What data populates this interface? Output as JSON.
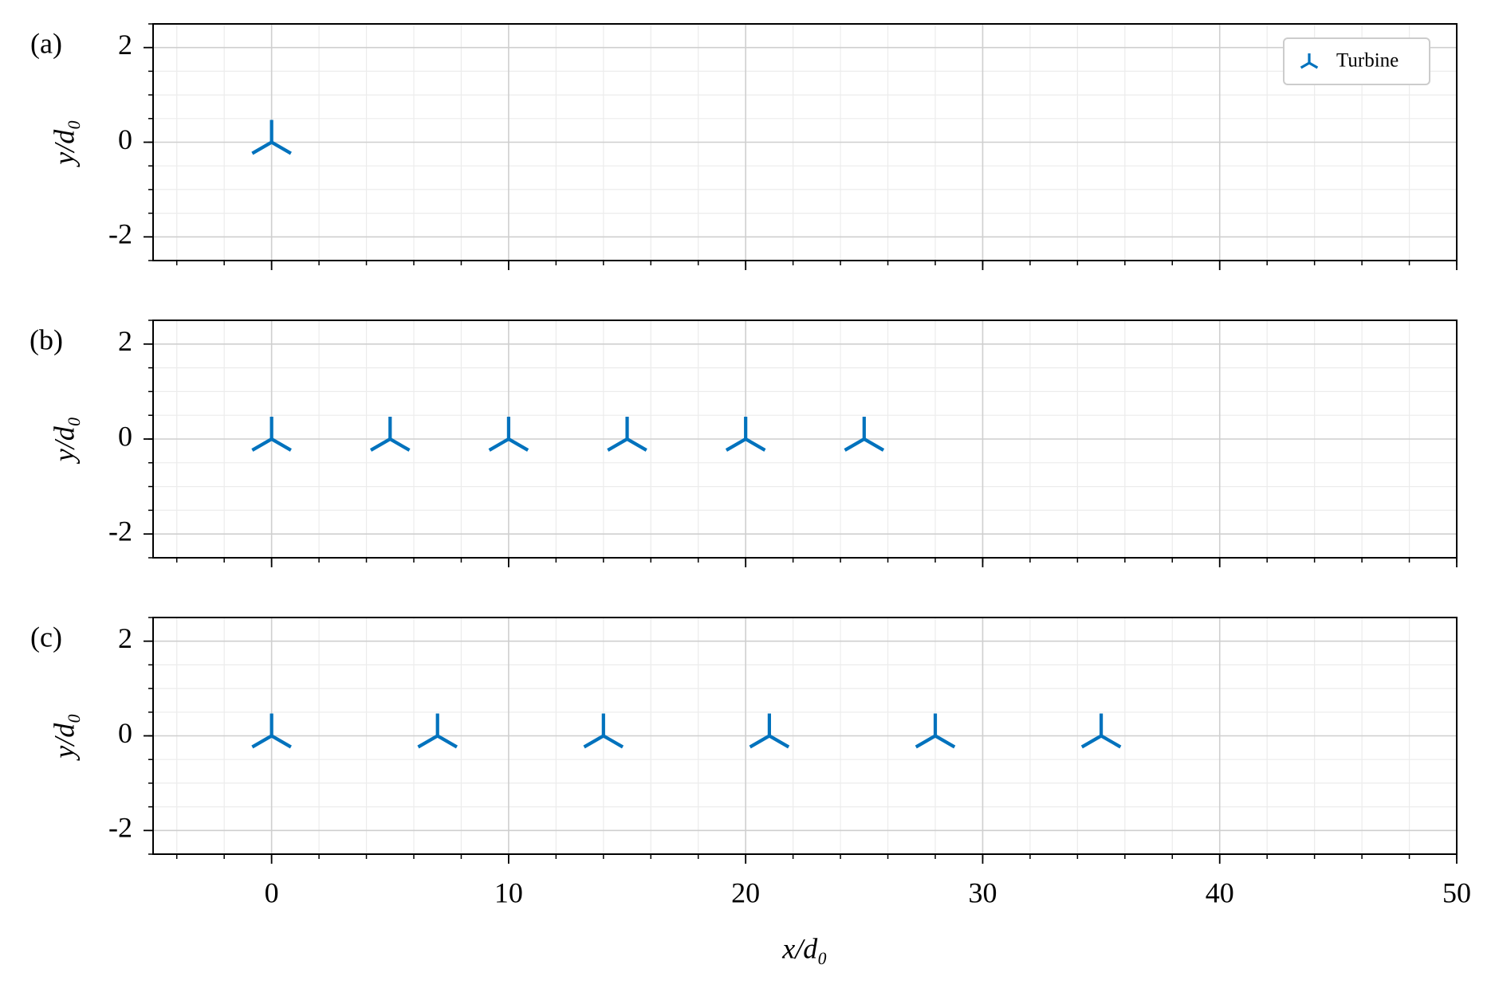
{
  "chart_data": [
    {
      "type": "scatter",
      "panel": "(a)",
      "ylabel": "y/d₀",
      "series": [
        {
          "name": "Turbine",
          "color": "#0072bd",
          "x": [
            0
          ],
          "values": [
            0
          ]
        }
      ],
      "legend": "upper right",
      "xlim": [
        -5,
        50
      ],
      "ylim": [
        -2.5,
        2.5
      ],
      "xticks": [
        0,
        10,
        20,
        30,
        40,
        50
      ],
      "yticks": [
        -2,
        0,
        2
      ],
      "xminor": 2,
      "yminor": 0.5,
      "grid": true
    },
    {
      "type": "scatter",
      "panel": "(b)",
      "ylabel": "y/d₀",
      "series": [
        {
          "color": "#0072bd",
          "x": [
            0,
            5,
            10,
            15,
            20,
            25
          ],
          "values": [
            0,
            0,
            0,
            0,
            0,
            0
          ]
        }
      ],
      "xlim": [
        -5,
        50
      ],
      "ylim": [
        -2.5,
        2.5
      ],
      "xticks": [
        0,
        10,
        20,
        30,
        40,
        50
      ],
      "yticks": [
        -2,
        0,
        2
      ],
      "xminor": 2,
      "yminor": 0.5,
      "grid": true
    },
    {
      "type": "scatter",
      "panel": "(c)",
      "ylabel": "y/d₀",
      "xlabel": "x/d₀",
      "series": [
        {
          "color": "#0072bd",
          "x": [
            0,
            7,
            14,
            21,
            28,
            35
          ],
          "values": [
            0,
            0,
            0,
            0,
            0,
            0
          ]
        }
      ],
      "xlim": [
        -5,
        50
      ],
      "ylim": [
        -2.5,
        2.5
      ],
      "xticks": [
        0,
        10,
        20,
        30,
        40,
        50
      ],
      "yticks": [
        -2,
        0,
        2
      ],
      "xminor": 2,
      "yminor": 0.5,
      "grid": true
    }
  ]
}
